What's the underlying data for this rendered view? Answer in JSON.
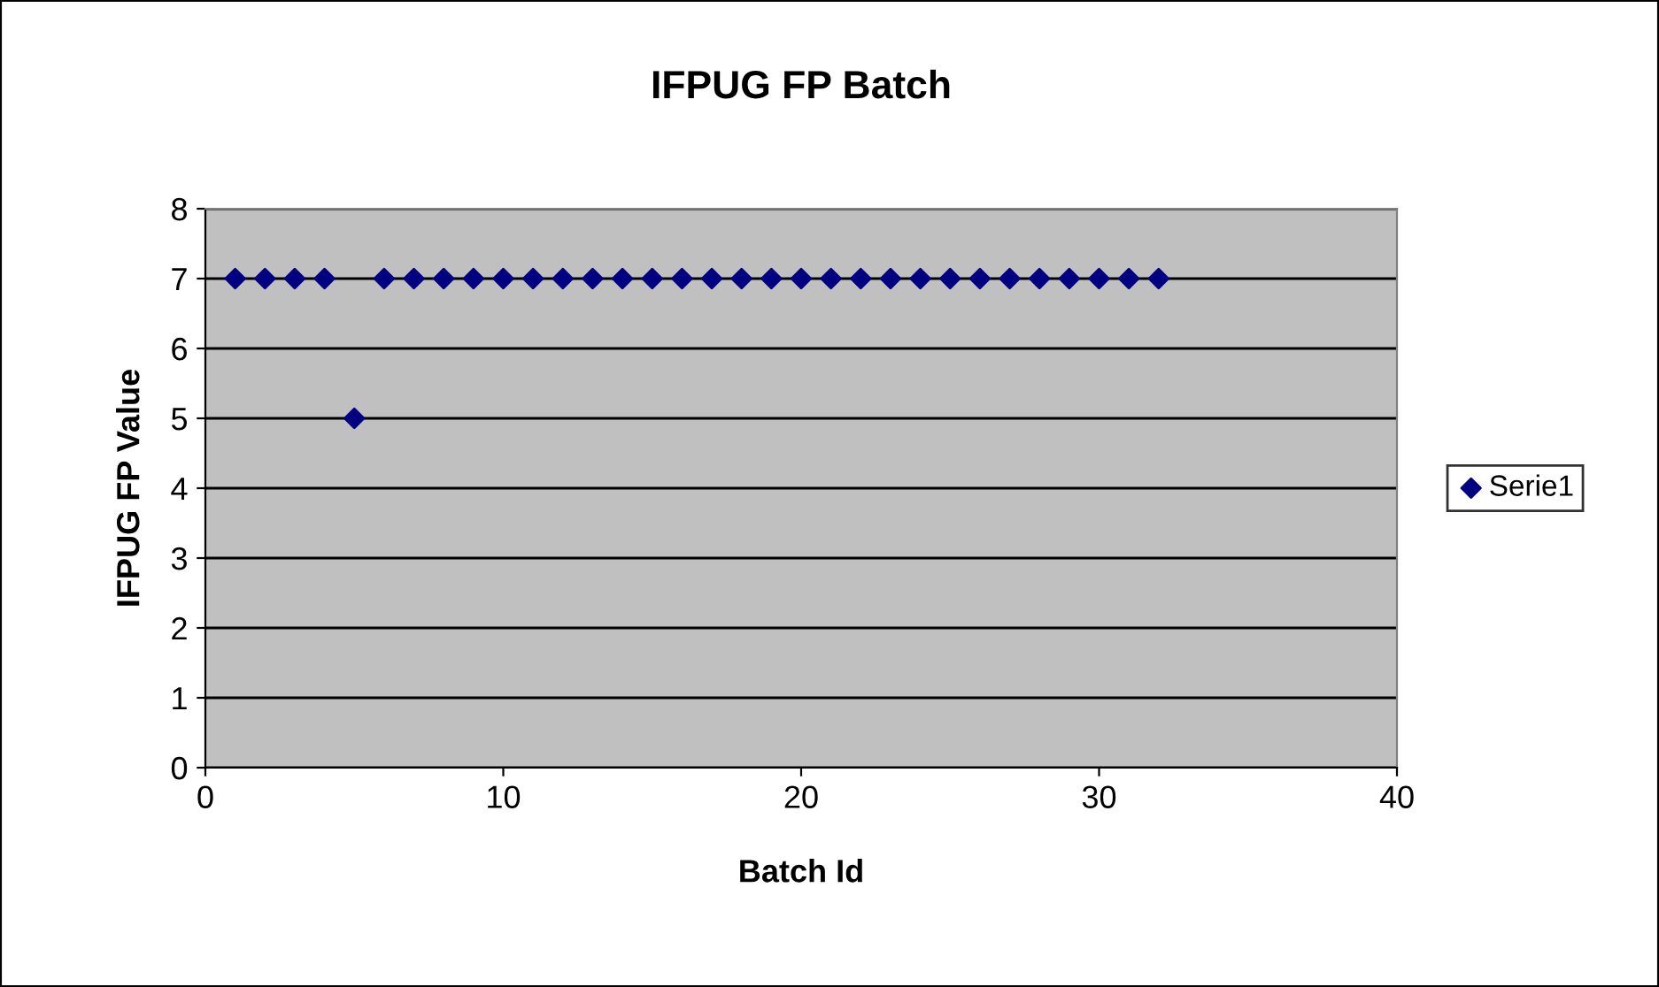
{
  "chart_data": {
    "type": "scatter",
    "title": "IFPUG FP Batch",
    "xlabel": "Batch Id",
    "ylabel": "IFPUG FP Value",
    "x": [
      1,
      2,
      3,
      4,
      5,
      6,
      7,
      8,
      9,
      10,
      11,
      12,
      13,
      14,
      15,
      16,
      17,
      18,
      19,
      20,
      21,
      22,
      23,
      24,
      25,
      26,
      27,
      28,
      29,
      30,
      31,
      32
    ],
    "series": [
      {
        "name": "Serie1",
        "color": "#000080",
        "values": [
          7,
          7,
          7,
          7,
          5,
          7,
          7,
          7,
          7,
          7,
          7,
          7,
          7,
          7,
          7,
          7,
          7,
          7,
          7,
          7,
          7,
          7,
          7,
          7,
          7,
          7,
          7,
          7,
          7,
          7,
          7,
          7
        ]
      }
    ],
    "xlim": [
      0,
      40
    ],
    "xticks": [
      0,
      10,
      20,
      30,
      40
    ],
    "ylim": [
      0,
      8
    ],
    "yticks": [
      0,
      1,
      2,
      3,
      4,
      5,
      6,
      7,
      8
    ],
    "grid": "y",
    "legend": "right",
    "marker": "diamond"
  }
}
